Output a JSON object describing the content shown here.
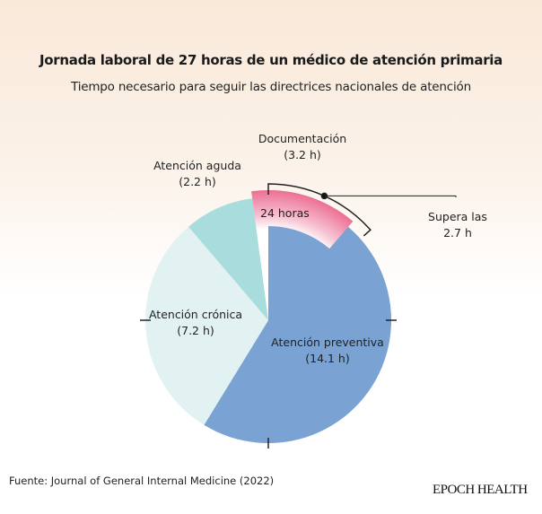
{
  "chart_data": {
    "type": "pie",
    "title": "Jornada laboral de 27 horas de un médico de atención primaria",
    "subtitle": "Tiempo necesario para seguir las directrices nacionales de atención",
    "unit": "h",
    "slices": [
      {
        "name": "Atención preventiva",
        "value": 14.1,
        "label": "(14.1 h)",
        "color": "#7aa3d3"
      },
      {
        "name": "Atención crónica",
        "value": 7.2,
        "label": "(7.2 h)",
        "color": "#e2f2f3"
      },
      {
        "name": "Atención aguda",
        "value": 2.2,
        "label": "(2.2 h)",
        "color": "#a9dcdd"
      },
      {
        "name": "Documentación",
        "value": 3.2,
        "label": "(3.2 h)",
        "color": "#ec6f94"
      }
    ],
    "reference_total": 24,
    "reference_label": "24 horas",
    "excess_label_line1": "Supera las",
    "excess_label_line2": "2.7 h"
  },
  "footer": {
    "source": "Fuente: Journal of General Internal Medicine (2022)",
    "brand": "EPOCH HEALTH"
  }
}
